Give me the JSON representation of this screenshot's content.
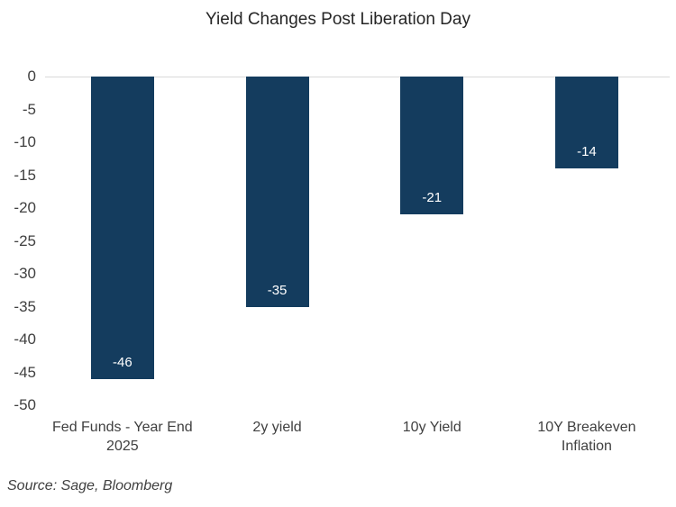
{
  "title": "Yield Changes Post Liberation Day",
  "source": "Source: Sage, Bloomberg",
  "colors": {
    "bar": "#143C5E",
    "gridline": "#d9d9d9",
    "axis_text": "#404040",
    "value_label": "#ffffff",
    "background": "#ffffff"
  },
  "chart_data": {
    "type": "bar",
    "title": "Yield Changes Post Liberation Day",
    "categories": [
      "Fed Funds - Year End 2025",
      "2y yield",
      "10y Yield",
      "10Y Breakeven Inflation"
    ],
    "category_lines": [
      [
        "Fed Funds - Year End",
        "2025"
      ],
      [
        "2y yield"
      ],
      [
        "10y Yield"
      ],
      [
        "10Y Breakeven",
        "Inflation"
      ]
    ],
    "values": [
      -46,
      -35,
      -21,
      -14
    ],
    "value_labels": [
      "-46",
      "-35",
      "-21",
      "-14"
    ],
    "xlabel": "",
    "ylabel": "",
    "ylim": [
      -50,
      0
    ],
    "yticks": [
      0,
      -5,
      -10,
      -15,
      -20,
      -25,
      -30,
      -35,
      -40,
      -45,
      -50
    ],
    "grid": "horizontal line at zero only",
    "legend": "none",
    "bar_label_position": "inside-bottom"
  }
}
